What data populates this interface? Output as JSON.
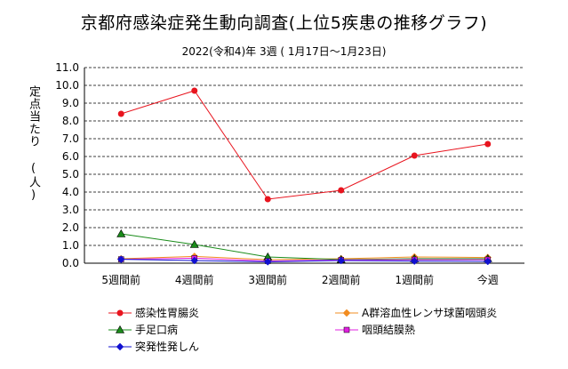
{
  "chart_data": {
    "type": "line",
    "title": "京都府感染症発生動向調査(上位5疾患の推移グラフ)",
    "subtitle": "2022(令和4)年  3週 ( 1月17日～1月23日)",
    "ylabel": "定点当たり (人)",
    "xlabel": "",
    "categories": [
      "5週間前",
      "4週間前",
      "3週間前",
      "2週間前",
      "1週間前",
      "今週"
    ],
    "ylim": [
      0,
      11
    ],
    "yticks": [
      "0.0",
      "1.0",
      "2.0",
      "3.0",
      "4.0",
      "5.0",
      "6.0",
      "7.0",
      "8.0",
      "9.0",
      "10.0",
      "11.0"
    ],
    "grid": true,
    "legend_position": "bottom",
    "series": [
      {
        "name": "感染性胃腸炎",
        "color": "#e8141e",
        "marker": "circle",
        "values": [
          8.4,
          9.7,
          3.6,
          4.1,
          6.05,
          6.7
        ]
      },
      {
        "name": "A群溶血性レンサ球菌咽頭炎",
        "color": "#f28c20",
        "marker": "diamond",
        "values": [
          0.25,
          0.38,
          0.2,
          0.25,
          0.35,
          0.32
        ]
      },
      {
        "name": "手足口病",
        "color": "#1a8c1a",
        "marker": "triangle",
        "values": [
          1.65,
          1.05,
          0.35,
          0.2,
          0.25,
          0.25
        ]
      },
      {
        "name": "咽頭結膜熱",
        "color": "#e020e0",
        "marker": "square",
        "values": [
          0.22,
          0.28,
          0.12,
          0.18,
          0.2,
          0.2
        ]
      },
      {
        "name": "突発性発しん",
        "color": "#1010d0",
        "marker": "diamond",
        "values": [
          0.22,
          0.15,
          0.08,
          0.15,
          0.12,
          0.1
        ]
      }
    ]
  }
}
